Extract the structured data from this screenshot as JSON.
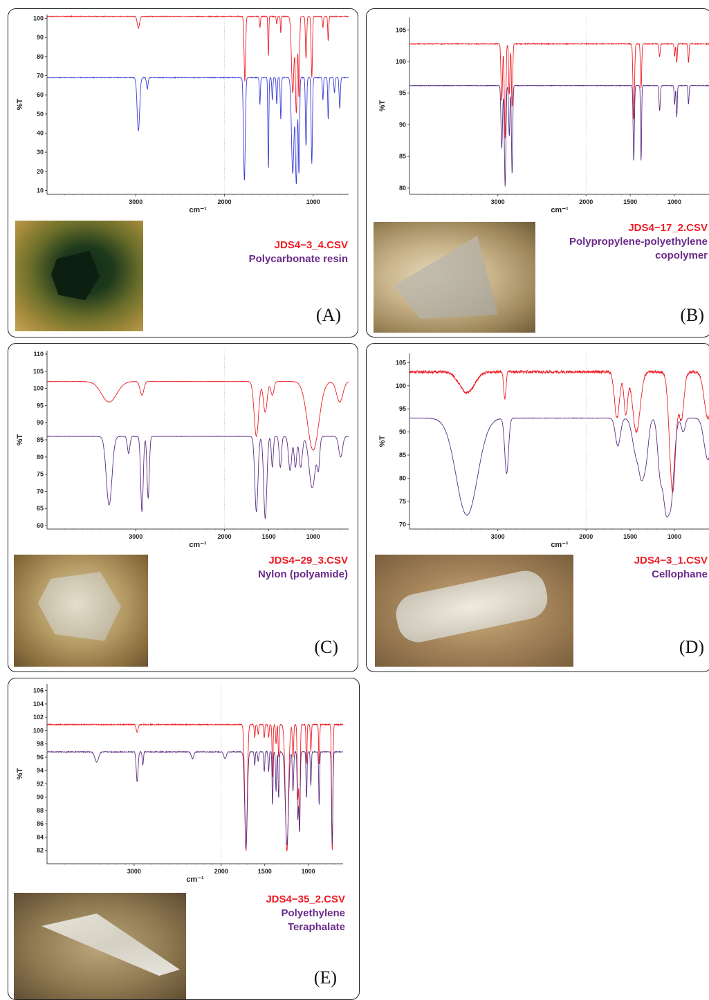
{
  "colors": {
    "sample": "#ee1c24",
    "reference": "#3b3bd6",
    "reference_purple": "#5a2d82",
    "label_red": "#ee1c24",
    "label_purple": "#6a2a8a"
  },
  "chart_data": [
    {
      "id": "A",
      "type": "line",
      "panel_label": "(A)",
      "file": "JDS4−3_4.CSV",
      "material": [
        "Polycarbonate resin"
      ],
      "xlabel": "cm⁻¹",
      "ylabel": "%T",
      "xlim": [
        4000,
        600
      ],
      "ylim": [
        8,
        102
      ],
      "xticks": [
        3000,
        2000,
        1000
      ],
      "yticks": [
        10,
        20,
        30,
        40,
        50,
        60,
        70,
        80,
        90,
        100
      ],
      "series": [
        {
          "role": "sample",
          "color": "#ee1c24",
          "baseline": 101,
          "ripple": 0.4,
          "bands": [
            [
              2970,
              6,
              18
            ],
            [
              1770,
              34,
              12
            ],
            [
              1600,
              6,
              8
            ],
            [
              1505,
              21,
              7
            ],
            [
              1410,
              4,
              8
            ],
            [
              1365,
              9,
              6
            ],
            [
              1230,
              40,
              20
            ],
            [
              1190,
              50,
              14
            ],
            [
              1160,
              42,
              10
            ],
            [
              1080,
              22,
              10
            ],
            [
              1015,
              32,
              10
            ],
            [
              890,
              6,
              8
            ],
            [
              830,
              13,
              8
            ]
          ]
        },
        {
          "role": "reference",
          "color": "#3b3bd6",
          "baseline": 69,
          "ripple": 0.4,
          "bands": [
            [
              2970,
              28,
              20
            ],
            [
              2870,
              6,
              12
            ],
            [
              1775,
              54,
              14
            ],
            [
              1600,
              14,
              8
            ],
            [
              1505,
              48,
              8
            ],
            [
              1460,
              12,
              8
            ],
            [
              1410,
              14,
              8
            ],
            [
              1365,
              22,
              8
            ],
            [
              1230,
              50,
              20
            ],
            [
              1190,
              55,
              14
            ],
            [
              1160,
              50,
              10
            ],
            [
              1080,
              36,
              10
            ],
            [
              1015,
              45,
              10
            ],
            [
              890,
              12,
              8
            ],
            [
              830,
              22,
              8
            ],
            [
              760,
              8,
              8
            ],
            [
              700,
              16,
              10
            ]
          ]
        }
      ]
    },
    {
      "id": "B",
      "type": "line",
      "panel_label": "(B)",
      "file": "JDS4−17_2.CSV",
      "material": [
        "Polypropylene-polyethylene",
        "copolymer"
      ],
      "xlabel": "cm⁻¹",
      "ylabel": "%T",
      "xlim": [
        4000,
        600
      ],
      "ylim": [
        79,
        107
      ],
      "xticks": [
        3000,
        2000,
        1500,
        1000
      ],
      "yticks": [
        80,
        85,
        90,
        95,
        100,
        105
      ],
      "series": [
        {
          "role": "sample",
          "color": "#ee1c24",
          "baseline": 102.8,
          "ripple": 0.15,
          "bands": [
            [
              2955,
              9,
              12
            ],
            [
              2917,
              15,
              12
            ],
            [
              2870,
              8,
              10
            ],
            [
              2838,
              10,
              10
            ],
            [
              1460,
              12,
              12
            ],
            [
              1377,
              7,
              10
            ],
            [
              1167,
              2,
              10
            ],
            [
              997,
              2,
              8
            ],
            [
              973,
              3,
              8
            ],
            [
              840,
              3,
              8
            ]
          ]
        },
        {
          "role": "reference",
          "color": "#5a2d82",
          "baseline": 96.2,
          "ripple": 0.1,
          "bands": [
            [
              2955,
              10,
              12
            ],
            [
              2917,
              16,
              12
            ],
            [
              2870,
              8,
              10
            ],
            [
              2838,
              14,
              10
            ],
            [
              1460,
              12,
              10
            ],
            [
              1377,
              12,
              8
            ],
            [
              1167,
              4,
              10
            ],
            [
              997,
              3,
              8
            ],
            [
              973,
              5,
              8
            ],
            [
              840,
              3,
              8
            ]
          ]
        }
      ]
    },
    {
      "id": "C",
      "type": "line",
      "panel_label": "(C)",
      "file": "JDS4−29_3.CSV",
      "material": [
        "Nylon (polyamide)"
      ],
      "xlabel": "cm⁻¹",
      "ylabel": "%T",
      "xlim": [
        4000,
        600
      ],
      "ylim": [
        59,
        111
      ],
      "xticks": [
        3000,
        2000,
        1500,
        1000
      ],
      "yticks": [
        60,
        65,
        70,
        75,
        80,
        85,
        90,
        95,
        100,
        105,
        110
      ],
      "series": [
        {
          "role": "sample",
          "color": "#ee1c24",
          "baseline": 102,
          "ripple": 0.1,
          "bands": [
            [
              3300,
              6,
              120
            ],
            [
              2930,
              4,
              30
            ],
            [
              1640,
              16,
              35
            ],
            [
              1540,
              9,
              30
            ],
            [
              1460,
              4,
              25
            ],
            [
              1000,
              20,
              90
            ],
            [
              700,
              6,
              50
            ]
          ]
        },
        {
          "role": "reference",
          "color": "#5a2d82",
          "baseline": 86,
          "ripple": 0.1,
          "bands": [
            [
              3300,
              20,
              45
            ],
            [
              3080,
              5,
              20
            ],
            [
              2930,
              22,
              20
            ],
            [
              2860,
              18,
              18
            ],
            [
              1640,
              22,
              25
            ],
            [
              1540,
              24,
              25
            ],
            [
              1460,
              9,
              15
            ],
            [
              1370,
              9,
              18
            ],
            [
              1260,
              10,
              25
            ],
            [
              1200,
              9,
              20
            ],
            [
              1140,
              9,
              25
            ],
            [
              1010,
              15,
              50
            ],
            [
              940,
              8,
              20
            ],
            [
              690,
              6,
              30
            ]
          ]
        }
      ]
    },
    {
      "id": "D",
      "type": "line",
      "panel_label": "(D)",
      "file": "JDS4−3_1.CSV",
      "material": [
        "Cellophane"
      ],
      "xlabel": "cm⁻¹",
      "ylabel": "%T",
      "xlim": [
        4000,
        600
      ],
      "ylim": [
        69,
        107
      ],
      "xticks": [
        3000,
        2000,
        1500,
        1000
      ],
      "yticks": [
        70,
        75,
        80,
        85,
        90,
        95,
        100,
        105
      ],
      "series": [
        {
          "role": "sample",
          "color": "#ee1c24",
          "baseline": 103,
          "ripple": 0.6,
          "bands": [
            [
              3350,
              4.5,
              120
            ],
            [
              2920,
              6,
              18
            ],
            [
              1650,
              10,
              40
            ],
            [
              1550,
              9,
              30
            ],
            [
              1430,
              13,
              60
            ],
            [
              1020,
              26,
              50
            ],
            [
              920,
              10,
              40
            ],
            [
              620,
              10,
              60
            ]
          ]
        },
        {
          "role": "reference",
          "color": "#5a2d82",
          "baseline": 93,
          "ripple": 0.1,
          "bands": [
            [
              3350,
              21,
              170
            ],
            [
              2900,
              12,
              30
            ],
            [
              1640,
              6,
              40
            ],
            [
              1430,
              8,
              60
            ],
            [
              1370,
              9,
              40
            ],
            [
              1320,
              8,
              40
            ],
            [
              1160,
              12,
              40
            ],
            [
              1100,
              15,
              40
            ],
            [
              1040,
              18,
              50
            ],
            [
              900,
              3,
              30
            ],
            [
              620,
              9,
              60
            ]
          ]
        }
      ]
    },
    {
      "id": "E",
      "type": "line",
      "panel_label": "(E)",
      "file": "JDS4−35_2.CSV",
      "material": [
        "Polyethylene",
        "Teraphalate"
      ],
      "xlabel": "cm⁻¹",
      "ylabel": "%T",
      "xlim": [
        4000,
        600
      ],
      "ylim": [
        80,
        107
      ],
      "xticks": [
        3000,
        2000,
        1500,
        1000
      ],
      "yticks": [
        82,
        84,
        86,
        88,
        90,
        92,
        94,
        96,
        98,
        100,
        102,
        104,
        106
      ],
      "series": [
        {
          "role": "sample",
          "color": "#ee1c24",
          "baseline": 100.9,
          "ripple": 0.15,
          "bands": [
            [
              2965,
              1.2,
              15
            ],
            [
              1715,
              19,
              20
            ],
            [
              1615,
              2,
              8
            ],
            [
              1575,
              1.5,
              8
            ],
            [
              1505,
              2,
              8
            ],
            [
              1455,
              2,
              8
            ],
            [
              1410,
              8,
              8
            ],
            [
              1370,
              3,
              8
            ],
            [
              1340,
              5,
              8
            ],
            [
              1245,
              19,
              25
            ],
            [
              1175,
              5,
              10
            ],
            [
              1120,
              11,
              10
            ],
            [
              1100,
              16,
              10
            ],
            [
              1020,
              6,
              8
            ],
            [
              970,
              4,
              8
            ],
            [
              875,
              6,
              8
            ],
            [
              725,
              19,
              10
            ]
          ]
        },
        {
          "role": "reference",
          "color": "#5a2d82",
          "baseline": 96.8,
          "ripple": 0.15,
          "bands": [
            [
              3430,
              1.5,
              30
            ],
            [
              2965,
              4.5,
              15
            ],
            [
              2900,
              2,
              10
            ],
            [
              2330,
              1,
              20
            ],
            [
              1955,
              1,
              20
            ],
            [
              1715,
              14.5,
              20
            ],
            [
              1615,
              2,
              8
            ],
            [
              1575,
              1.5,
              8
            ],
            [
              1505,
              3,
              8
            ],
            [
              1455,
              3,
              8
            ],
            [
              1410,
              8,
              8
            ],
            [
              1370,
              6,
              8
            ],
            [
              1340,
              7,
              8
            ],
            [
              1245,
              14,
              25
            ],
            [
              1175,
              6,
              10
            ],
            [
              1120,
              10,
              10
            ],
            [
              1100,
              12,
              10
            ],
            [
              1020,
              7,
              8
            ],
            [
              970,
              5,
              8
            ],
            [
              875,
              8,
              8
            ],
            [
              725,
              14,
              10
            ]
          ]
        }
      ]
    }
  ]
}
